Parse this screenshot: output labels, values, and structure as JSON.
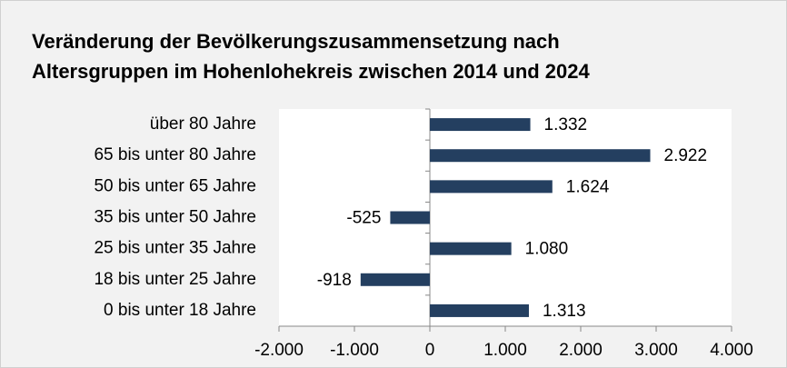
{
  "chart_data": {
    "type": "bar",
    "orientation": "horizontal",
    "title": [
      "Veränderung der Bevölkerungszusammensetzung nach",
      "Altersgruppen im Hohenlohekreis zwischen 2014 und 2024"
    ],
    "categories": [
      "über 80 Jahre",
      "65 bis unter 80 Jahre",
      "50 bis unter 65 Jahre",
      "35 bis unter 50 Jahre",
      "25 bis unter 35 Jahre",
      "18 bis unter 25 Jahre",
      "0 bis unter 18 Jahre"
    ],
    "values": [
      1332,
      2922,
      1624,
      -525,
      1080,
      -918,
      1313
    ],
    "value_labels": [
      "1.332",
      "2.922",
      "1.624",
      "-525",
      "1.080",
      "-918",
      "1.313"
    ],
    "color": "#243f60",
    "xlim": [
      -2000,
      4000
    ],
    "xticks": [
      {
        "value": -2000,
        "label": "-2.000"
      },
      {
        "value": -1000,
        "label": "-1.000"
      },
      0,
      {
        "value": 1000,
        "label": "1.000"
      },
      {
        "value": 2000,
        "label": "2.000"
      },
      {
        "value": 3000,
        "label": "3.000"
      },
      {
        "value": 4000,
        "label": "4.000"
      }
    ],
    "grid": false
  }
}
